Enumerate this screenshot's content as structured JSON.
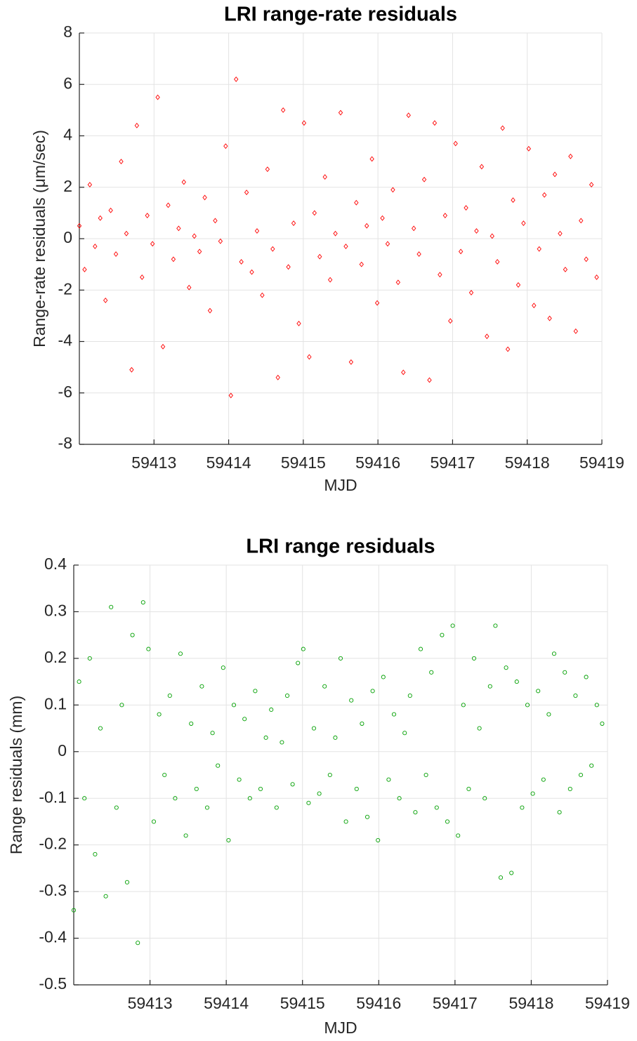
{
  "chart_data": [
    {
      "type": "scatter",
      "title": "LRI range-rate residuals",
      "xlabel": "MJD",
      "ylabel": "Range-rate residuals (μm/sec)",
      "color": "#ff0000",
      "marker": "diamond",
      "grid": true,
      "xlim": [
        59412,
        59419
      ],
      "ylim": [
        -8,
        8
      ],
      "xticks": [
        59413,
        59414,
        59415,
        59416,
        59417,
        59418,
        59419
      ],
      "yticks": [
        -8,
        -6,
        -4,
        -2,
        0,
        2,
        4,
        6,
        8
      ],
      "x": [
        59412,
        59412.07,
        59412.14,
        59412.21,
        59412.28,
        59412.35,
        59412.42,
        59412.49,
        59412.56,
        59412.63,
        59412.7,
        59412.77,
        59412.84,
        59412.91,
        59412.98,
        59413.05,
        59413.12,
        59413.19,
        59413.26,
        59413.33,
        59413.4,
        59413.47,
        59413.54,
        59413.61,
        59413.68,
        59413.75,
        59413.82,
        59413.89,
        59413.96,
        59414.03,
        59414.1,
        59414.17,
        59414.24,
        59414.31,
        59414.38,
        59414.45,
        59414.52,
        59414.59,
        59414.66,
        59414.73,
        59414.8,
        59414.87,
        59414.94,
        59415.01,
        59415.08,
        59415.15,
        59415.22,
        59415.29,
        59415.36,
        59415.43,
        59415.5,
        59415.57,
        59415.64,
        59415.71,
        59415.78,
        59415.85,
        59415.92,
        59415.99,
        59416.06,
        59416.13,
        59416.2,
        59416.27,
        59416.34,
        59416.41,
        59416.48,
        59416.55,
        59416.62,
        59416.69,
        59416.76,
        59416.83,
        59416.9,
        59416.97,
        59417.04,
        59417.11,
        59417.18,
        59417.25,
        59417.32,
        59417.39,
        59417.46,
        59417.53,
        59417.6,
        59417.67,
        59417.74,
        59417.81,
        59417.88,
        59417.95,
        59418.02,
        59418.09,
        59418.16,
        59418.23,
        59418.3,
        59418.37,
        59418.44,
        59418.51,
        59418.58,
        59418.65,
        59418.72,
        59418.79,
        59418.86,
        59418.93
      ],
      "values": [
        0.5,
        -1.2,
        2.1,
        -0.3,
        0.8,
        -2.4,
        1.1,
        -0.6,
        3.0,
        0.2,
        -5.1,
        4.4,
        -1.5,
        0.9,
        -0.2,
        5.5,
        -4.2,
        1.3,
        -0.8,
        0.4,
        2.2,
        -1.9,
        0.1,
        -0.5,
        1.6,
        -2.8,
        0.7,
        -0.1,
        3.6,
        -6.1,
        6.2,
        -0.9,
        1.8,
        -1.3,
        0.3,
        -2.2,
        2.7,
        -0.4,
        -5.4,
        5.0,
        -1.1,
        0.6,
        -3.3,
        4.5,
        -4.6,
        1.0,
        -0.7,
        2.4,
        -1.6,
        0.2,
        4.9,
        -0.3,
        -4.8,
        1.4,
        -1.0,
        0.5,
        3.1,
        -2.5,
        0.8,
        -0.2,
        1.9,
        -1.7,
        -5.2,
        4.8,
        0.4,
        -0.6,
        2.3,
        -5.5,
        4.5,
        -1.4,
        0.9,
        -3.2,
        3.7,
        -0.5,
        1.2,
        -2.1,
        0.3,
        2.8,
        -3.8,
        0.1,
        -0.9,
        4.3,
        -4.3,
        1.5,
        -1.8,
        0.6,
        3.5,
        -2.6,
        -0.4,
        1.7,
        -3.1,
        2.5,
        0.2,
        -1.2,
        3.2,
        -3.6,
        0.7,
        -0.8,
        2.1,
        -1.5
      ]
    },
    {
      "type": "scatter",
      "title": "LRI range residuals",
      "xlabel": "MJD",
      "ylabel": "Range residuals (mm)",
      "color": "#00a000",
      "marker": "circle",
      "grid": true,
      "xlim": [
        59412,
        59419
      ],
      "ylim": [
        -0.5,
        0.4
      ],
      "xticks": [
        59413,
        59414,
        59415,
        59416,
        59417,
        59418,
        59419
      ],
      "yticks": [
        -0.5,
        -0.4,
        -0.3,
        -0.2,
        -0.1,
        0,
        0.1,
        0.2,
        0.3,
        0.4
      ],
      "x": [
        59412,
        59412.07,
        59412.14,
        59412.21,
        59412.28,
        59412.35,
        59412.42,
        59412.49,
        59412.56,
        59412.63,
        59412.7,
        59412.77,
        59412.84,
        59412.91,
        59412.98,
        59413.05,
        59413.12,
        59413.19,
        59413.26,
        59413.33,
        59413.4,
        59413.47,
        59413.54,
        59413.61,
        59413.68,
        59413.75,
        59413.82,
        59413.89,
        59413.96,
        59414.03,
        59414.1,
        59414.17,
        59414.24,
        59414.31,
        59414.38,
        59414.45,
        59414.52,
        59414.59,
        59414.66,
        59414.73,
        59414.8,
        59414.87,
        59414.94,
        59415.01,
        59415.08,
        59415.15,
        59415.22,
        59415.29,
        59415.36,
        59415.43,
        59415.5,
        59415.57,
        59415.64,
        59415.71,
        59415.78,
        59415.85,
        59415.92,
        59415.99,
        59416.06,
        59416.13,
        59416.2,
        59416.27,
        59416.34,
        59416.41,
        59416.48,
        59416.55,
        59416.62,
        59416.69,
        59416.76,
        59416.83,
        59416.9,
        59416.97,
        59417.04,
        59417.11,
        59417.18,
        59417.25,
        59417.32,
        59417.39,
        59417.46,
        59417.53,
        59417.6,
        59417.67,
        59417.74,
        59417.81,
        59417.88,
        59417.95,
        59418.02,
        59418.09,
        59418.16,
        59418.23,
        59418.3,
        59418.37,
        59418.44,
        59418.51,
        59418.58,
        59418.65,
        59418.72,
        59418.79,
        59418.86,
        59418.93
      ],
      "values": [
        -0.34,
        0.15,
        -0.1,
        0.2,
        -0.22,
        0.05,
        -0.31,
        0.31,
        -0.12,
        0.1,
        -0.28,
        0.25,
        -0.41,
        0.32,
        0.22,
        -0.15,
        0.08,
        -0.05,
        0.12,
        -0.1,
        0.21,
        -0.18,
        0.06,
        -0.08,
        0.14,
        -0.12,
        0.04,
        -0.03,
        0.18,
        -0.19,
        0.1,
        -0.06,
        0.07,
        -0.1,
        0.13,
        -0.08,
        0.03,
        0.09,
        -0.12,
        0.02,
        0.12,
        -0.07,
        0.19,
        0.22,
        -0.11,
        0.05,
        -0.09,
        0.14,
        -0.05,
        0.03,
        0.2,
        -0.15,
        0.11,
        -0.08,
        0.06,
        -0.14,
        0.13,
        -0.19,
        0.16,
        -0.06,
        0.08,
        -0.1,
        0.04,
        0.12,
        -0.13,
        0.22,
        -0.05,
        0.17,
        -0.12,
        0.25,
        -0.15,
        0.27,
        -0.18,
        0.1,
        -0.08,
        0.2,
        0.05,
        -0.1,
        0.14,
        0.27,
        -0.27,
        0.18,
        -0.26,
        0.15,
        -0.12,
        0.1,
        -0.09,
        0.13,
        -0.06,
        0.08,
        0.21,
        -0.13,
        0.17,
        -0.08,
        0.12,
        -0.05,
        0.16,
        -0.03,
        0.1,
        0.06
      ]
    }
  ]
}
